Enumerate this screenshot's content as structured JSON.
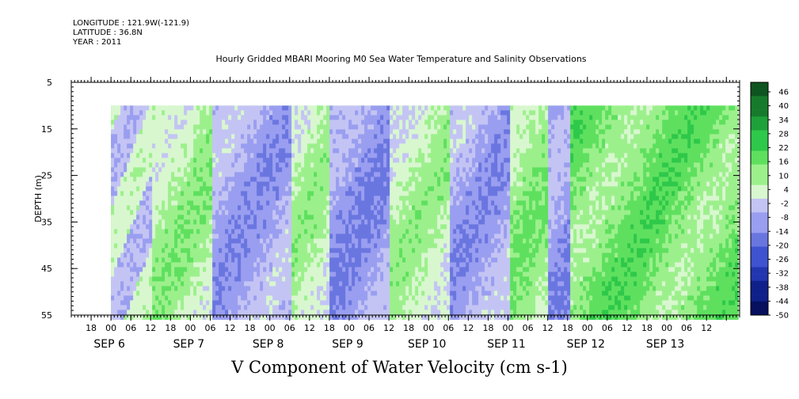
{
  "header": {
    "longitude": "LONGITUDE : 121.9W(-121.9)",
    "latitude": "LATITUDE : 36.8N",
    "year": "YEAR : 2011"
  },
  "chart_data": {
    "type": "heatmap",
    "title": "Hourly Gridded MBARI Mooring M0 Sea Water Temperature and Salinity Observations",
    "variable_label": "V Component of Water Velocity (cm s-1)",
    "ylabel": "DEPTH (m)",
    "ylim": [
      55,
      5
    ],
    "y_ticks": [
      5,
      15,
      25,
      35,
      45,
      55
    ],
    "x_range_hours": [
      "2011-09-05 12:00",
      "2011-09-13 22:00"
    ],
    "data_extent": {
      "x_start": "2011-09-06 00:00",
      "x_end": "2011-09-13 21:00",
      "depth_top": 10,
      "depth_bottom": 55
    },
    "hour_tick_labels": [
      "18",
      "00",
      "06",
      "12",
      "18",
      "00",
      "06",
      "12",
      "18",
      "00",
      "06",
      "12",
      "18",
      "00",
      "06",
      "12",
      "18",
      "00",
      "06",
      "12",
      "18",
      "00",
      "06",
      "12",
      "18",
      "00",
      "06",
      "12",
      "18",
      "00",
      "06",
      "12"
    ],
    "date_labels": [
      {
        "label": "SEP  6",
        "date": "2011-09-06"
      },
      {
        "label": "SEP  7",
        "date": "2011-09-07"
      },
      {
        "label": "SEP  8",
        "date": "2011-09-08"
      },
      {
        "label": "SEP  9",
        "date": "2011-09-09"
      },
      {
        "label": "SEP 10",
        "date": "2011-09-10"
      },
      {
        "label": "SEP 11",
        "date": "2011-09-11"
      },
      {
        "label": "SEP 12",
        "date": "2011-09-12"
      },
      {
        "label": "SEP 13",
        "date": "2011-09-13"
      }
    ],
    "colorbar": {
      "labels": [
        "46",
        "40",
        "34",
        "28",
        "22",
        "16",
        "10",
        "4",
        "-2",
        "-8",
        "-14",
        "-20",
        "-26",
        "-32",
        "-38",
        "-44",
        "-50"
      ],
      "range": [
        -50,
        50
      ],
      "colors_positive": [
        "#d8f7cf",
        "#9cf08c",
        "#5ee05e",
        "#2ec84a",
        "#1ea03a",
        "#167a2c",
        "#0e5420"
      ],
      "colors_negative": [
        "#c4c4f4",
        "#9a9ef0",
        "#6a76e0",
        "#3f52d0",
        "#2236b0",
        "#10208a",
        "#06105e"
      ]
    },
    "dominant_bands": [
      {
        "from": "2011-09-06 00:00",
        "to": "2011-09-06 12:00",
        "sign": "mixed",
        "typical_value": -4
      },
      {
        "from": "2011-09-06 12:00",
        "to": "2011-09-07 06:00",
        "sign": "positive",
        "typical_value": 8
      },
      {
        "from": "2011-09-07 06:00",
        "to": "2011-09-08 06:00",
        "sign": "negative",
        "typical_value": -8
      },
      {
        "from": "2011-09-08 06:00",
        "to": "2011-09-08 18:00",
        "sign": "positive",
        "typical_value": 6
      },
      {
        "from": "2011-09-08 18:00",
        "to": "2011-09-09 12:00",
        "sign": "negative",
        "typical_value": -10
      },
      {
        "from": "2011-09-09 12:00",
        "to": "2011-09-10 06:00",
        "sign": "positive",
        "typical_value": 6
      },
      {
        "from": "2011-09-10 06:00",
        "to": "2011-09-11 00:00",
        "sign": "negative",
        "typical_value": -8
      },
      {
        "from": "2011-09-11 00:00",
        "to": "2011-09-11 12:00",
        "sign": "positive",
        "typical_value": 10
      },
      {
        "from": "2011-09-11 12:00",
        "to": "2011-09-11 18:00",
        "sign": "negative",
        "typical_value": -10
      },
      {
        "from": "2011-09-11 18:00",
        "to": "2011-09-13 21:00",
        "sign": "positive",
        "typical_value": 14
      }
    ]
  }
}
